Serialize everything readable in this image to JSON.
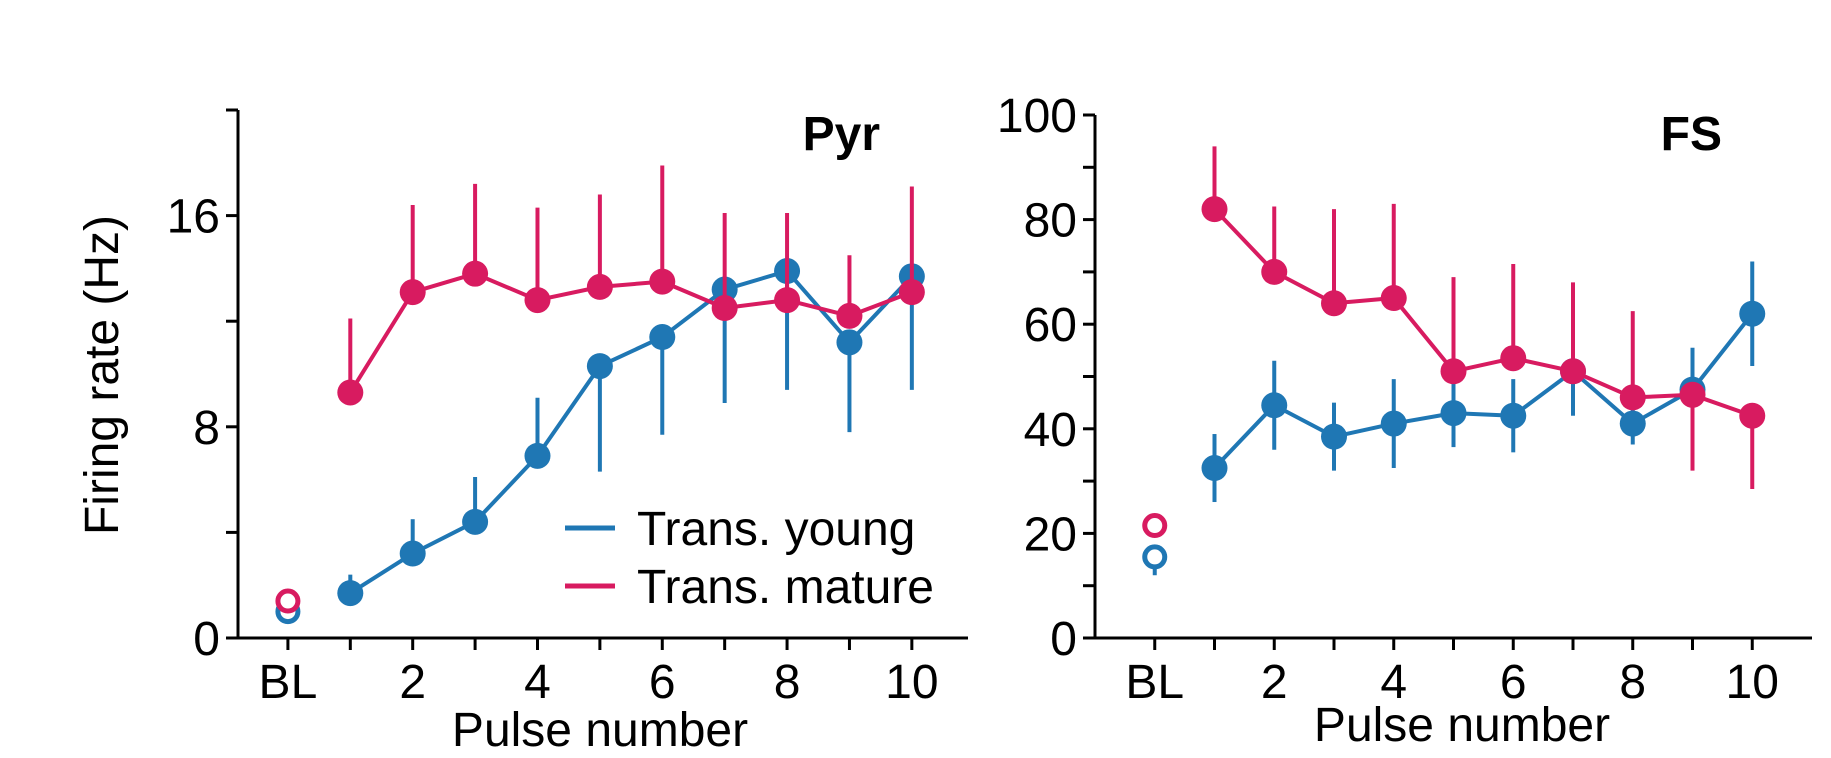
{
  "colors": {
    "young": "#1f77b4",
    "mature": "#d81b60",
    "axis": "#000000"
  },
  "chart_data": [
    {
      "type": "line",
      "title": "Pyr",
      "xlabel": "Pulse number",
      "ylabel": "Firing rate (Hz)",
      "xlim": [
        -0.8,
        10.9
      ],
      "ylim": [
        0,
        20
      ],
      "x_ticks": [
        {
          "value": 0,
          "label": "BL"
        },
        {
          "value": 2,
          "label": "2"
        },
        {
          "value": 4,
          "label": "4"
        },
        {
          "value": 6,
          "label": "6"
        },
        {
          "value": 8,
          "label": "8"
        },
        {
          "value": 10,
          "label": "10"
        }
      ],
      "x_minor_ticks": [
        1,
        3,
        5,
        7,
        9
      ],
      "y_ticks": [
        {
          "value": 0,
          "label": "0"
        },
        {
          "value": 8,
          "label": "8"
        },
        {
          "value": 16,
          "label": "16"
        }
      ],
      "y_minor_ticks": [
        4,
        12,
        20
      ],
      "baseline": [
        {
          "name": "Trans. young",
          "color_key": "young",
          "x": 0,
          "y": 1.0,
          "err": 0
        },
        {
          "name": "Trans. mature",
          "color_key": "mature",
          "x": 0,
          "y": 1.4,
          "err": 0
        }
      ],
      "series": [
        {
          "name": "Trans. young",
          "color_key": "young",
          "x": [
            1,
            2,
            3,
            4,
            5,
            6,
            7,
            8,
            9,
            10
          ],
          "values": [
            1.7,
            3.2,
            4.4,
            6.9,
            10.3,
            11.4,
            13.2,
            13.9,
            11.2,
            13.7
          ],
          "errors": [
            0.7,
            1.3,
            1.7,
            2.2,
            4.0,
            3.7,
            4.3,
            4.5,
            3.4,
            4.3
          ]
        },
        {
          "name": "Trans. mature",
          "color_key": "mature",
          "x": [
            1,
            2,
            3,
            4,
            5,
            6,
            7,
            8,
            9,
            10
          ],
          "values": [
            9.3,
            13.1,
            13.8,
            12.8,
            13.3,
            13.5,
            12.5,
            12.8,
            12.2,
            13.1
          ],
          "errors": [
            2.8,
            3.3,
            3.4,
            3.5,
            3.5,
            4.4,
            3.6,
            3.3,
            2.3,
            4.0
          ]
        }
      ]
    },
    {
      "type": "line",
      "title": "FS",
      "xlabel": "Pulse number",
      "ylabel": "",
      "xlim": [
        -1,
        11
      ],
      "ylim": [
        0,
        100
      ],
      "x_ticks": [
        {
          "value": 0,
          "label": "BL"
        },
        {
          "value": 2,
          "label": "2"
        },
        {
          "value": 4,
          "label": "4"
        },
        {
          "value": 6,
          "label": "6"
        },
        {
          "value": 8,
          "label": "8"
        },
        {
          "value": 10,
          "label": "10"
        }
      ],
      "x_minor_ticks": [
        1,
        3,
        5,
        7,
        9
      ],
      "y_ticks": [
        {
          "value": 0,
          "label": "0"
        },
        {
          "value": 20,
          "label": "20"
        },
        {
          "value": 40,
          "label": "40"
        },
        {
          "value": 60,
          "label": "60"
        },
        {
          "value": 80,
          "label": "80"
        },
        {
          "value": 100,
          "label": "100"
        }
      ],
      "y_minor_ticks": [
        10,
        30,
        50,
        70,
        90
      ],
      "baseline": [
        {
          "name": "Trans. young",
          "color_key": "young",
          "x": 0,
          "y": 15.5,
          "err": 3.5
        },
        {
          "name": "Trans. mature",
          "color_key": "mature",
          "x": 0,
          "y": 21.5,
          "err": 0
        }
      ],
      "series": [
        {
          "name": "Trans. young",
          "color_key": "young",
          "x": [
            1,
            2,
            3,
            4,
            5,
            6,
            7,
            8,
            9,
            10
          ],
          "values": [
            32.5,
            44.5,
            38.5,
            41,
            43,
            42.5,
            51,
            41,
            47.5,
            62
          ],
          "errors": [
            6.5,
            8.5,
            6.5,
            8.5,
            6.5,
            7,
            8.5,
            4,
            8,
            10
          ]
        },
        {
          "name": "Trans. mature",
          "color_key": "mature",
          "x": [
            1,
            2,
            3,
            4,
            5,
            6,
            7,
            8,
            9,
            10
          ],
          "values": [
            82,
            70,
            64,
            65,
            51,
            53.5,
            51,
            46,
            46.5,
            42.5
          ],
          "errors": [
            12,
            12.5,
            18,
            18,
            18,
            18,
            17,
            16.5,
            14.5,
            14
          ]
        }
      ]
    }
  ],
  "legend": {
    "position": "lower-right of Pyr panel",
    "items": [
      {
        "label": "Trans. young",
        "color_key": "young"
      },
      {
        "label": "Trans. mature",
        "color_key": "mature"
      }
    ]
  }
}
